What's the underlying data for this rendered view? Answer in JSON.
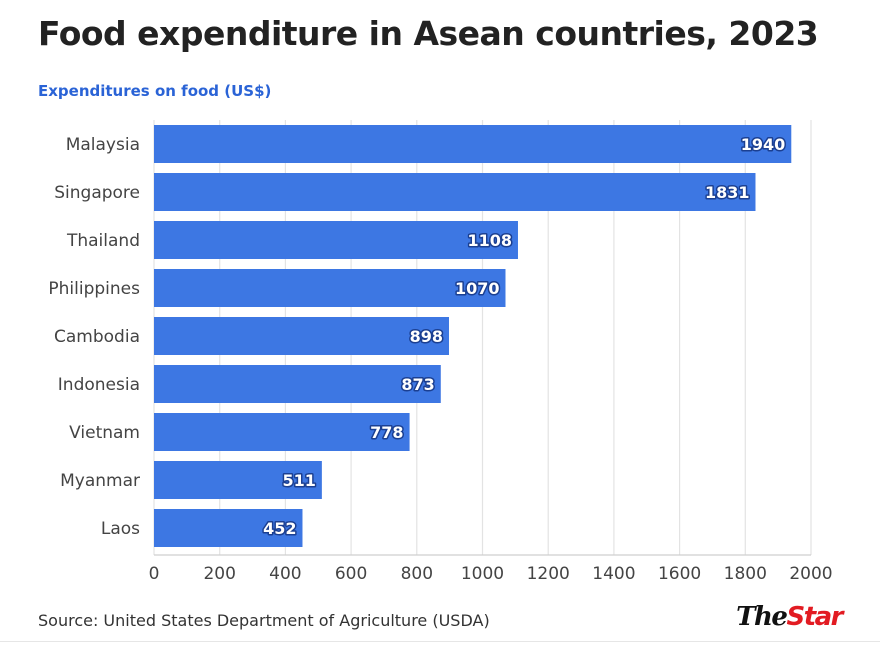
{
  "title": "Food expenditure in Asean countries, 2023",
  "subtitle": "Expenditures on food (US$)",
  "source": "Source: United States Department of Agriculture (USDA)",
  "logo": {
    "part1": "The",
    "part2": "Star"
  },
  "colors": {
    "bar": "#3d77e3",
    "subtitle": "#2a63d6",
    "logo_accent": "#e21b22"
  },
  "chart_data": {
    "type": "bar",
    "orientation": "horizontal",
    "categories": [
      "Malaysia",
      "Singapore",
      "Thailand",
      "Philippines",
      "Cambodia",
      "Indonesia",
      "Vietnam",
      "Myanmar",
      "Laos"
    ],
    "values": [
      1940,
      1831,
      1108,
      1070,
      898,
      873,
      778,
      511,
      452
    ],
    "xlim": [
      0,
      2000
    ],
    "xticks": [
      0,
      200,
      400,
      600,
      800,
      1000,
      1200,
      1400,
      1600,
      1800,
      2000
    ],
    "grid": true,
    "data_labels": true
  }
}
